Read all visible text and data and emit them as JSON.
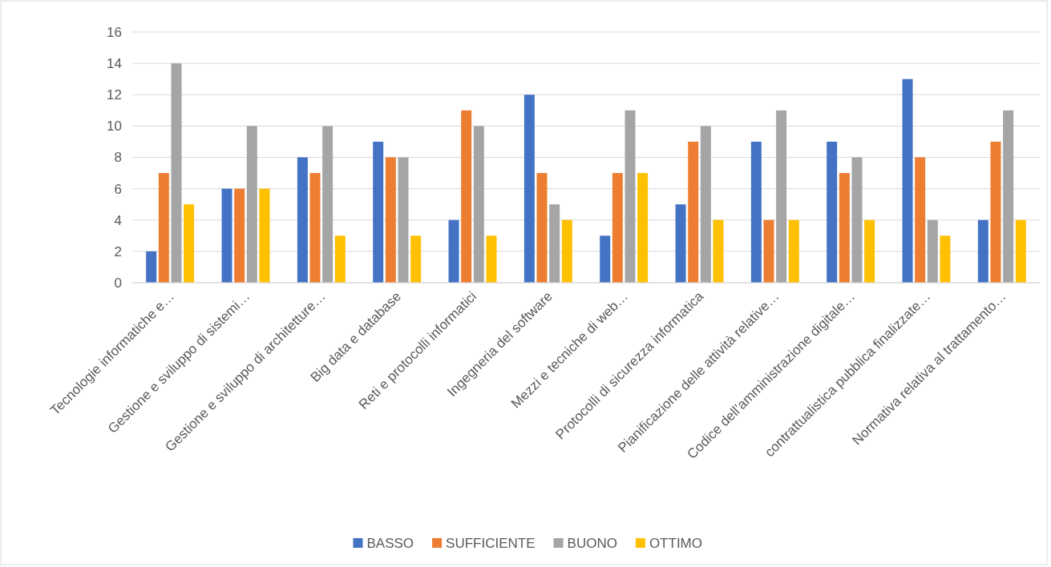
{
  "chart_data": {
    "type": "bar",
    "categories": [
      "Tecnologie informatiche e…",
      "Gestione e sviluppo di sistemi…",
      "Gestione e sviluppo di architetture…",
      "Big data e database",
      "Reti e protocolli informatici",
      "Ingegneria del software",
      "Mezzi e tecniche di web…",
      "Protocolli di sicurezza informatica",
      "Pianificazione delle attività relative…",
      "Codice dell’amministrazione digitale…",
      "contrattualistica pubblica finalizzate…",
      "Normativa relativa al trattamento…"
    ],
    "series": [
      {
        "name": "BASSO",
        "color": "#4472c4",
        "values": [
          2,
          6,
          8,
          9,
          4,
          12,
          3,
          5,
          9,
          9,
          13,
          4
        ]
      },
      {
        "name": "SUFFICIENTE",
        "color": "#ed7d31",
        "values": [
          7,
          6,
          7,
          8,
          11,
          7,
          7,
          9,
          4,
          7,
          8,
          9
        ]
      },
      {
        "name": "BUONO",
        "color": "#a5a5a5",
        "values": [
          14,
          10,
          10,
          8,
          10,
          5,
          11,
          10,
          11,
          8,
          4,
          11
        ]
      },
      {
        "name": "OTTIMO",
        "color": "#ffc000",
        "values": [
          5,
          6,
          3,
          3,
          3,
          4,
          7,
          4,
          4,
          4,
          3,
          4
        ]
      }
    ],
    "ylim": [
      0,
      16
    ],
    "yticks": [
      0,
      2,
      4,
      6,
      8,
      10,
      12,
      14,
      16
    ],
    "grid": "y",
    "legend": "bottom"
  }
}
